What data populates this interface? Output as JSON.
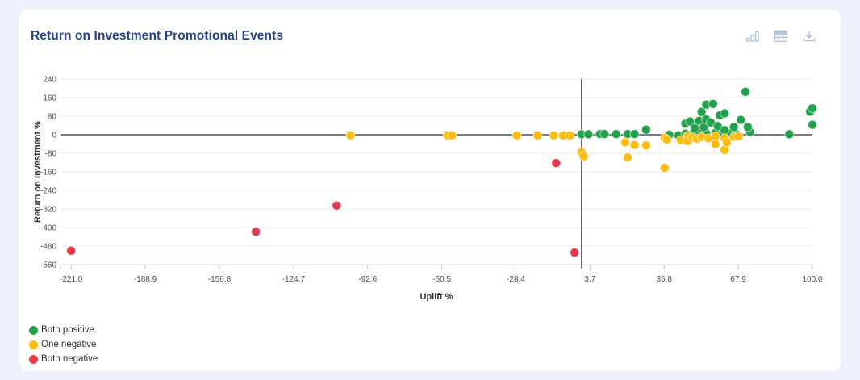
{
  "card": {
    "title": "Return on Investment Promotional Events",
    "toolbar": {
      "icons": [
        "bar-chart-view",
        "table-view",
        "download"
      ],
      "icon_color": "#b6c2da"
    }
  },
  "colors": {
    "page_background": "#edf1fb",
    "card_background": "#ffffff",
    "title": "#26408e",
    "grid": "#ebebee",
    "axis_line": "#d8d8dc",
    "tick_mark": "#c4c4ca",
    "zero_line": "#2f2f2f",
    "reference_line": "#4a4a4a",
    "tick_text": "#4d4d4d",
    "axis_title_text": "#333333"
  },
  "chart_data": {
    "type": "scatter",
    "title": "Return on Investment Promotional Events",
    "xlabel": "Uplift %",
    "ylabel": "Return on Investment %",
    "x_tick_labels": [
      "-221.0",
      "-188.9",
      "-156.8",
      "-124.7",
      "-92.6",
      "-60.5",
      "-28.4",
      "3.7",
      "35.8",
      "67.9",
      "100.0"
    ],
    "y_ticks": [
      240,
      160,
      80,
      0,
      -80,
      -160,
      -240,
      -320,
      -400,
      -480,
      -560
    ],
    "xlim": [
      -225.6,
      100
    ],
    "ylim": [
      -560,
      240
    ],
    "grid": "horizontal-only",
    "reference_lines": {
      "horizontal_y": 0,
      "vertical_x": 0
    },
    "legend_position": "bottom-left",
    "legend": [
      {
        "label": "Both positive",
        "color": "#22a04b"
      },
      {
        "label": "One negative",
        "color": "#fcbd12"
      },
      {
        "label": "Both negative",
        "color": "#e13a4d"
      }
    ],
    "series": [
      {
        "name": "Both positive",
        "color": "#22a04b",
        "points": [
          [
            0,
            2
          ],
          [
            3,
            2
          ],
          [
            8,
            3
          ],
          [
            10,
            3
          ],
          [
            15,
            3
          ],
          [
            20,
            3
          ],
          [
            23,
            3
          ],
          [
            28,
            22
          ],
          [
            38,
            0
          ],
          [
            42,
            -3
          ],
          [
            45,
            4
          ],
          [
            48,
            2
          ],
          [
            51,
            11
          ],
          [
            54,
            6
          ],
          [
            58,
            8
          ],
          [
            61,
            2
          ],
          [
            64,
            6
          ],
          [
            67,
            2
          ],
          [
            73,
            12
          ],
          [
            90,
            2
          ],
          [
            45,
            48
          ],
          [
            47,
            57
          ],
          [
            49,
            29
          ],
          [
            51,
            60
          ],
          [
            52,
            98
          ],
          [
            53,
            33
          ],
          [
            54,
            66
          ],
          [
            54,
            130
          ],
          [
            56,
            52
          ],
          [
            57,
            133
          ],
          [
            59,
            37
          ],
          [
            60,
            84
          ],
          [
            62,
            92
          ],
          [
            62,
            20
          ],
          [
            66,
            33
          ],
          [
            69,
            64
          ],
          [
            71,
            185
          ],
          [
            72,
            33
          ],
          [
            99,
            100
          ],
          [
            100,
            114
          ],
          [
            100,
            43
          ]
        ]
      },
      {
        "name": "One negative",
        "color": "#fcbd12",
        "points": [
          [
            -100,
            -3
          ],
          [
            -58,
            -3
          ],
          [
            -56,
            -3
          ],
          [
            -28,
            -3
          ],
          [
            -19,
            -3
          ],
          [
            -12,
            -3
          ],
          [
            -8,
            -3
          ],
          [
            -5,
            -3
          ],
          [
            0,
            -75
          ],
          [
            1,
            -93
          ],
          [
            19,
            -33
          ],
          [
            20,
            -98
          ],
          [
            23,
            -44
          ],
          [
            28,
            -46
          ],
          [
            36,
            -143
          ],
          [
            36,
            -14
          ],
          [
            37,
            -21
          ],
          [
            43,
            -23
          ],
          [
            46,
            -5
          ],
          [
            46,
            -27
          ],
          [
            48,
            -13
          ],
          [
            50,
            -17
          ],
          [
            52,
            -9
          ],
          [
            55,
            -15
          ],
          [
            58,
            -6
          ],
          [
            58,
            -41
          ],
          [
            62,
            -15
          ],
          [
            62,
            -65
          ],
          [
            63,
            -33
          ],
          [
            66,
            -9
          ],
          [
            68,
            -7
          ]
        ]
      },
      {
        "name": "Both negative",
        "color": "#e13a4d",
        "points": [
          [
            -221,
            -500
          ],
          [
            -141,
            -418
          ],
          [
            -106,
            -305
          ],
          [
            -11,
            -122
          ],
          [
            -3,
            -508
          ]
        ]
      }
    ]
  }
}
